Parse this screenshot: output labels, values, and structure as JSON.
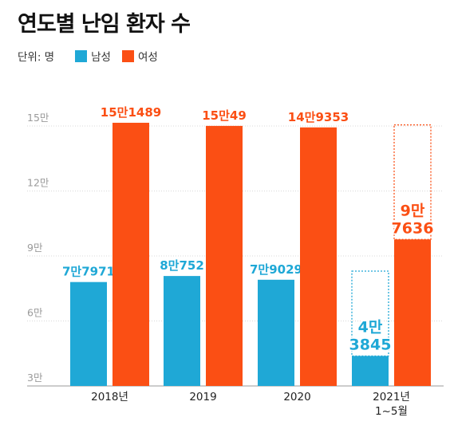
{
  "title": "연도별 난임 환자 수",
  "legend": {
    "unit": "단위: 명",
    "items": [
      {
        "label": "남성",
        "color": "#1fa8d6"
      },
      {
        "label": "여성",
        "color": "#fb4f14"
      }
    ]
  },
  "chart_data": {
    "type": "bar",
    "title": "연도별 난임 환자 수",
    "unit": "단위: 명",
    "categories": [
      "2018년",
      "2019",
      "2020",
      "2021년\n1~5월"
    ],
    "series": [
      {
        "name": "남성",
        "color": "#1fa8d6",
        "values": [
          77971,
          80752,
          79029,
          43845
        ],
        "labels": [
          "7만7971",
          "8만752",
          "7만9029",
          "4만\n3845"
        ]
      },
      {
        "name": "여성",
        "color": "#fb4f14",
        "values": [
          151489,
          150049,
          149353,
          97636
        ],
        "labels": [
          "15만1489",
          "15만49",
          "14만9353",
          "9만\n7636"
        ]
      }
    ],
    "y_ticks": [
      {
        "value": 30000,
        "label": "3만"
      },
      {
        "value": 60000,
        "label": "6만"
      },
      {
        "value": 90000,
        "label": "9만"
      },
      {
        "value": 120000,
        "label": "12만"
      },
      {
        "value": 150000,
        "label": "15만"
      }
    ],
    "ylim": [
      30000,
      150000
    ],
    "grid": true,
    "legend_position": "top-left"
  }
}
